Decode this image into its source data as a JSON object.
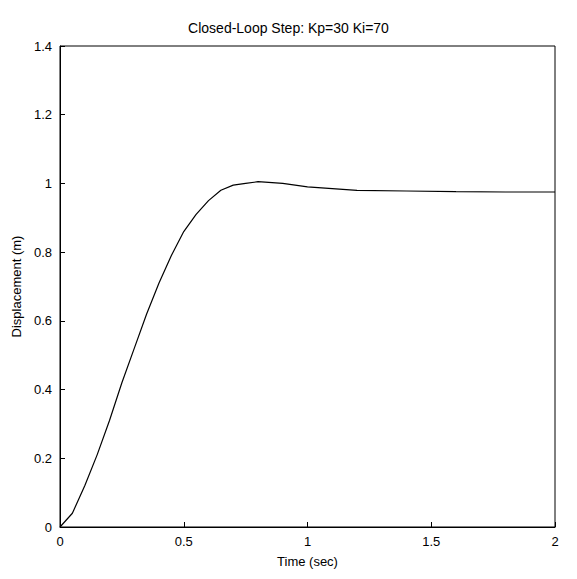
{
  "chart_data": {
    "type": "line",
    "title": "Closed-Loop Step: Kp=30 Ki=70",
    "x_label": "Time (sec)",
    "y_label": "Displacement (m)",
    "x": [
      0,
      0.05,
      0.1,
      0.15,
      0.2,
      0.25,
      0.3,
      0.35,
      0.4,
      0.45,
      0.5,
      0.55,
      0.6,
      0.65,
      0.7,
      0.75,
      0.8,
      0.9,
      1.0,
      1.1,
      1.2,
      1.4,
      1.6,
      1.8,
      2.0
    ],
    "values": [
      0,
      0.04,
      0.12,
      0.21,
      0.31,
      0.42,
      0.52,
      0.62,
      0.71,
      0.79,
      0.86,
      0.91,
      0.95,
      0.98,
      0.995,
      1.0,
      1.005,
      1.0,
      0.99,
      0.985,
      0.98,
      0.978,
      0.976,
      0.975,
      0.975
    ],
    "color": "#000000",
    "xlim": [
      0,
      2
    ],
    "xticks": [
      0,
      0.5,
      1,
      1.5,
      2
    ],
    "ylim": [
      0,
      1.4
    ],
    "yticks": [
      0,
      0.2,
      0.4,
      0.6,
      0.8,
      1,
      1.2,
      1.4
    ],
    "grid": false
  }
}
